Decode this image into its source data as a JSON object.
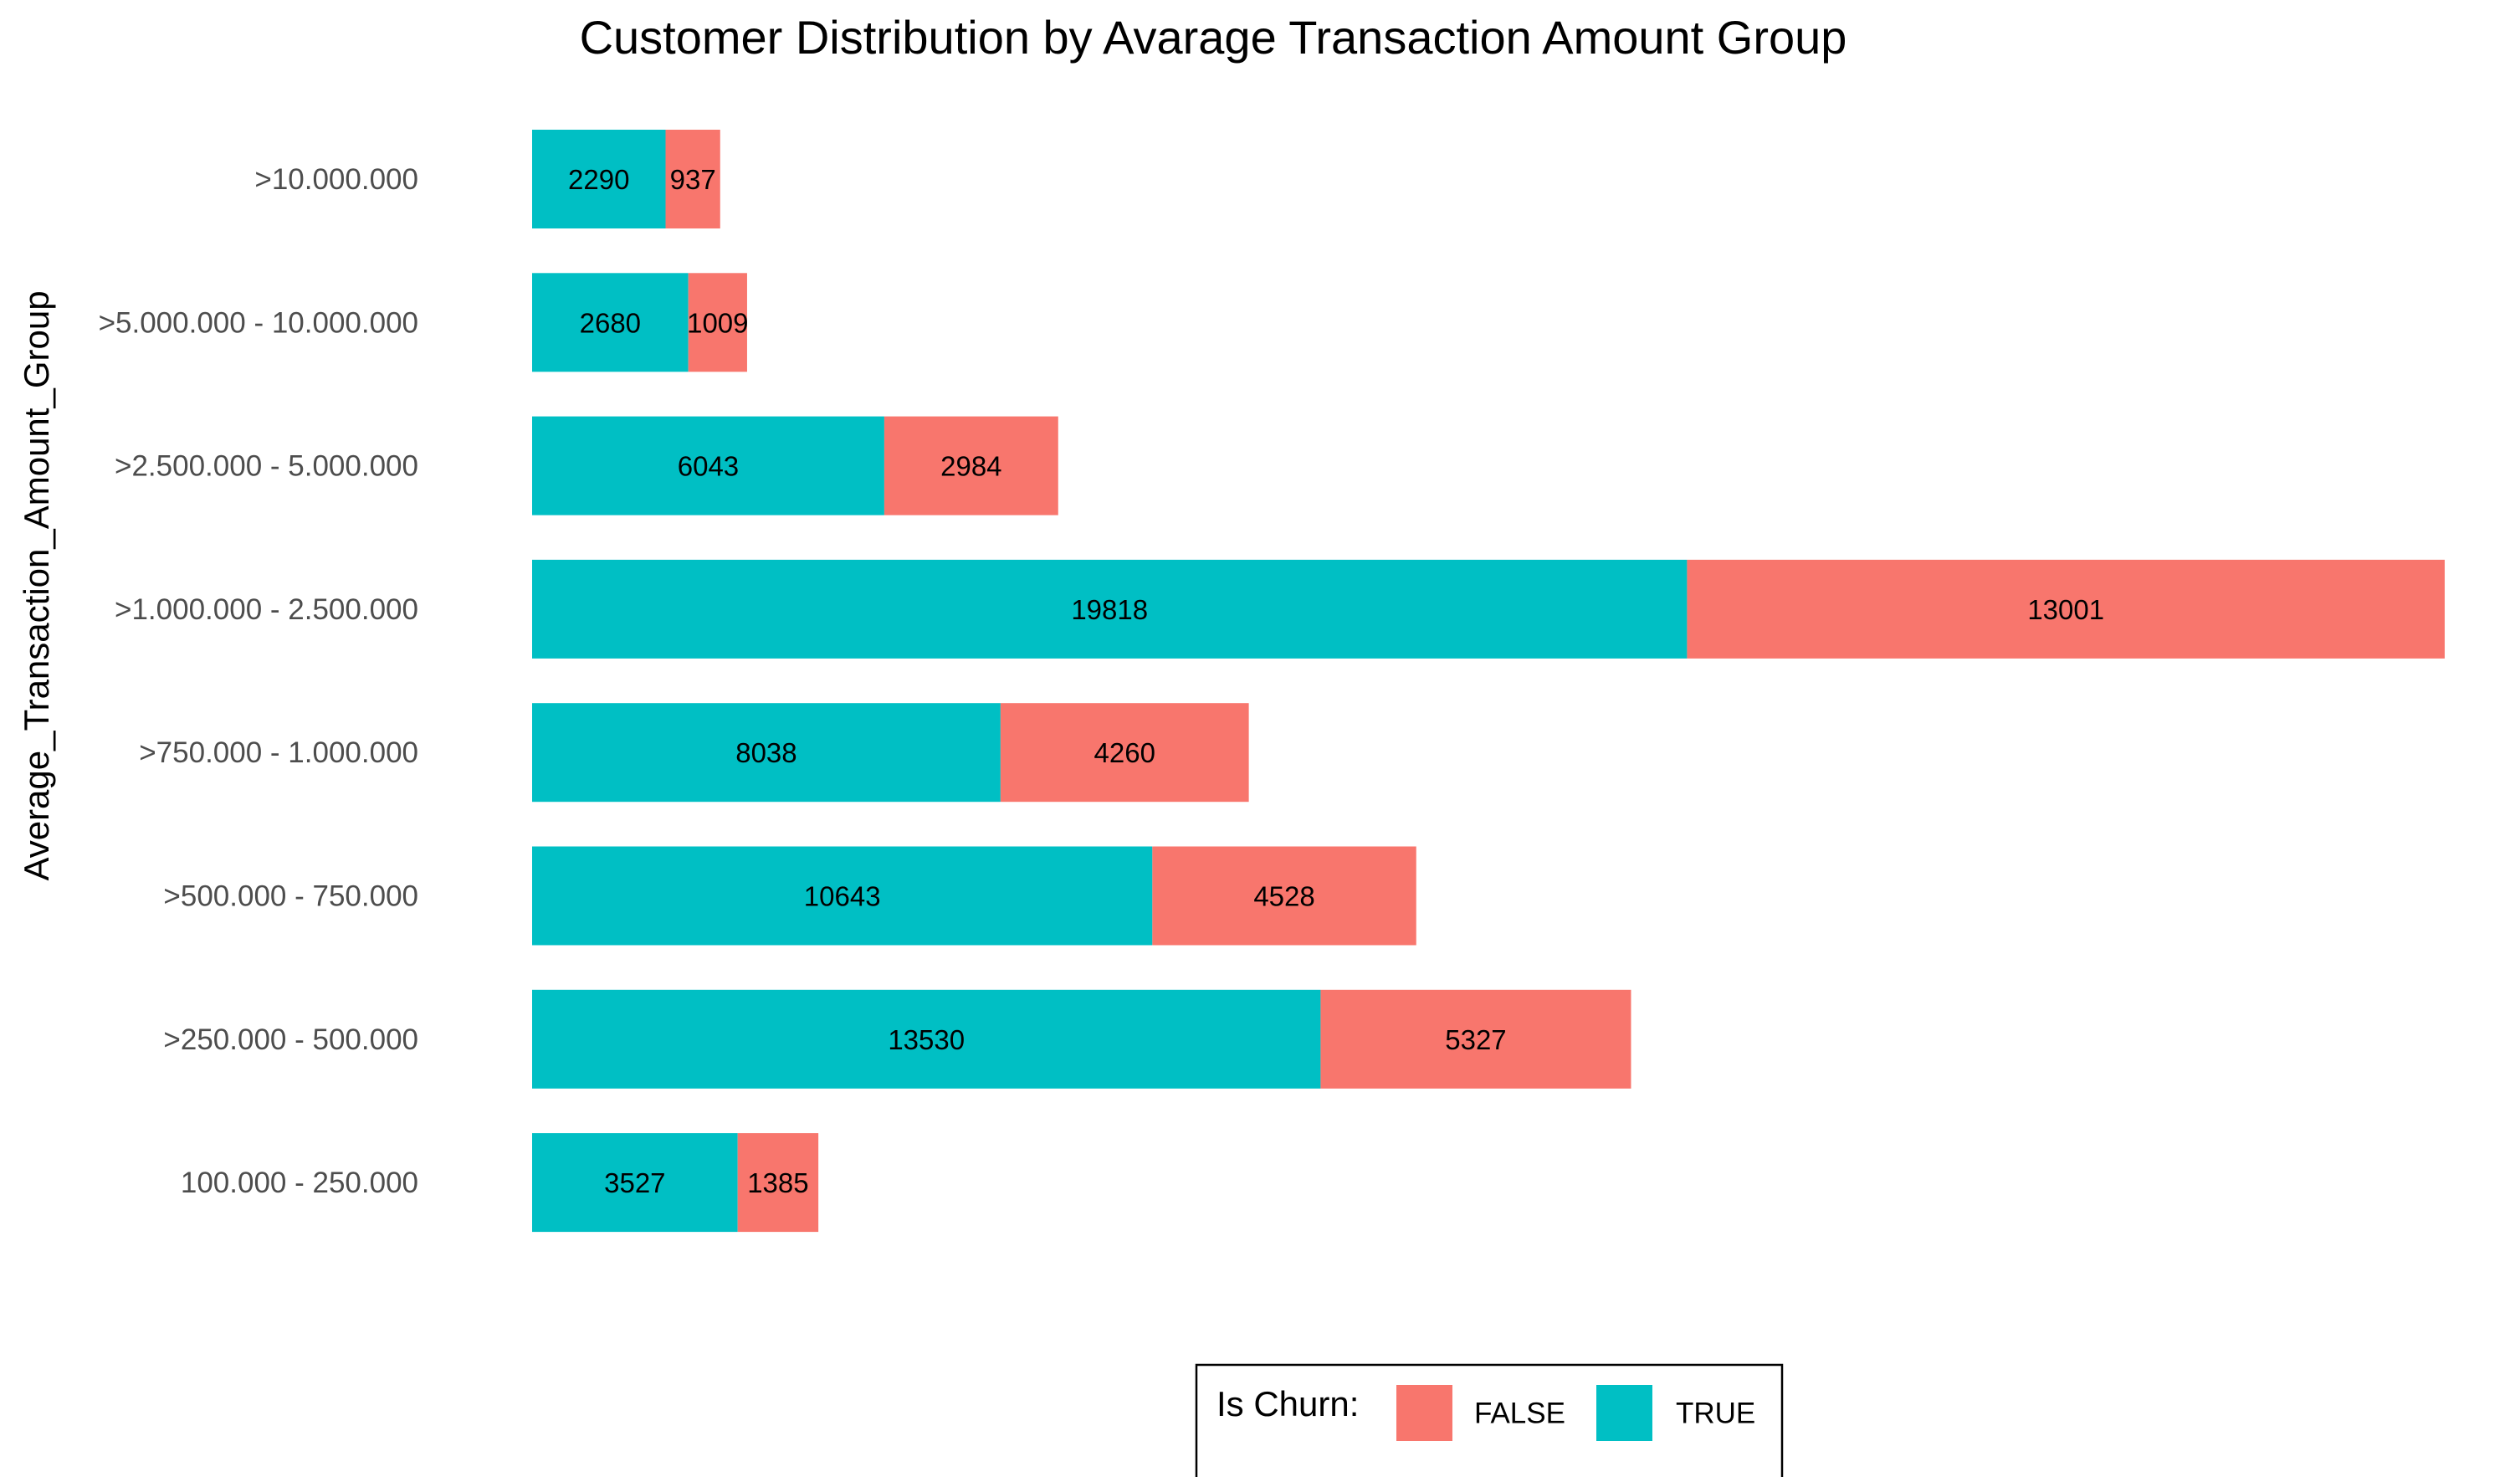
{
  "chart_data": {
    "type": "bar",
    "orientation": "horizontal",
    "stacked": true,
    "title": "Customer Distribution by Avarage Transaction Amount Group",
    "xlabel": "",
    "ylabel": "Average_Transaction_Amount_Group",
    "categories": [
      ">10.000.000",
      ">5.000.000 - 10.000.000",
      ">2.500.000 - 5.000.000",
      ">1.000.000 - 2.500.000",
      ">750.000 - 1.000.000",
      ">500.000 - 750.000",
      ">250.000 - 500.000",
      "100.000 - 250.000"
    ],
    "series": [
      {
        "name": "TRUE",
        "color": "#00BFC4",
        "values": [
          2290,
          2680,
          6043,
          19818,
          8038,
          10643,
          13530,
          3527
        ]
      },
      {
        "name": "FALSE",
        "color": "#F8766D",
        "values": [
          937,
          1009,
          2984,
          13001,
          4260,
          4528,
          5327,
          1385
        ]
      }
    ],
    "xlim": [
      0,
      32819
    ],
    "grid": false,
    "axis_ticks_x": false,
    "legend": {
      "title": "Is Churn:",
      "position": "bottom",
      "items": [
        {
          "label": "FALSE",
          "color": "#F8766D"
        },
        {
          "label": "TRUE",
          "color": "#00BFC4"
        }
      ]
    }
  }
}
